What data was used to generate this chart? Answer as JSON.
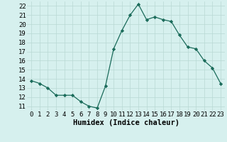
{
  "x": [
    0,
    1,
    2,
    3,
    4,
    5,
    6,
    7,
    8,
    9,
    10,
    11,
    12,
    13,
    14,
    15,
    16,
    17,
    18,
    19,
    20,
    21,
    22,
    23
  ],
  "y": [
    13.8,
    13.5,
    13.0,
    12.2,
    12.2,
    12.2,
    11.5,
    11.0,
    10.8,
    13.2,
    17.3,
    19.3,
    21.0,
    22.2,
    20.5,
    20.8,
    20.5,
    20.3,
    18.8,
    17.5,
    17.3,
    16.0,
    15.2,
    13.5
  ],
  "line_color": "#1a6b5a",
  "marker": "D",
  "marker_size": 2.2,
  "bg_color": "#d6f0ee",
  "grid_color": "#b8d8d4",
  "xlabel": "Humidex (Indice chaleur)",
  "xlabel_fontsize": 7.5,
  "ylabel_ticks": [
    11,
    12,
    13,
    14,
    15,
    16,
    17,
    18,
    19,
    20,
    21,
    22
  ],
  "xlim": [
    -0.5,
    23.5
  ],
  "ylim": [
    10.5,
    22.5
  ],
  "tick_fontsize": 6.5
}
